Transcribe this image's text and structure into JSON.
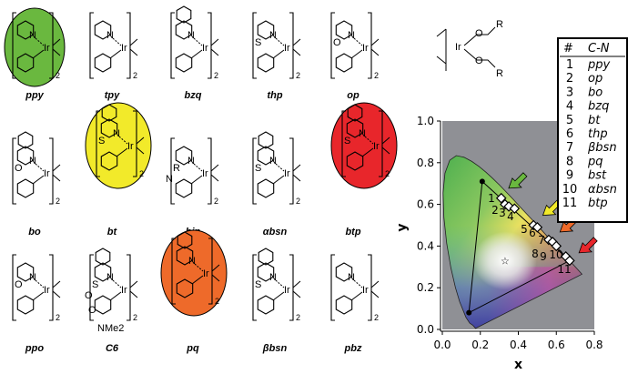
{
  "complexes": [
    {
      "label": "ppy",
      "atoms": [
        "N",
        "Ir",
        "2"
      ],
      "extra": [],
      "highlight": "#6ab83f"
    },
    {
      "label": "tpy",
      "atoms": [
        "N",
        "Ir",
        "2"
      ],
      "extra": [],
      "highlight": null
    },
    {
      "label": "bzq",
      "atoms": [
        "N",
        "Ir",
        "2"
      ],
      "extra": [],
      "highlight": null
    },
    {
      "label": "thp",
      "atoms": [
        "N",
        "Ir",
        "2"
      ],
      "extra": [
        "S"
      ],
      "highlight": null
    },
    {
      "label": "op",
      "atoms": [
        "N",
        "Ir",
        "2"
      ],
      "extra": [
        "O"
      ],
      "highlight": null
    },
    {
      "label": "bo",
      "atoms": [
        "N",
        "Ir",
        "2"
      ],
      "extra": [
        "O"
      ],
      "highlight": null
    },
    {
      "label": "bt",
      "atoms": [
        "N",
        "Ir",
        "2"
      ],
      "extra": [
        "S"
      ],
      "highlight": "#f2ea2a"
    },
    {
      "label": "bin",
      "atoms": [
        "N",
        "Ir",
        "2"
      ],
      "extra": [
        "R",
        "N"
      ],
      "highlight": null
    },
    {
      "label": "αbsn",
      "atoms": [
        "N",
        "Ir",
        "2"
      ],
      "extra": [
        "S"
      ],
      "highlight": null
    },
    {
      "label": "btp",
      "atoms": [
        "N",
        "Ir",
        "2"
      ],
      "extra": [
        "S"
      ],
      "highlight": "#e8262b"
    },
    {
      "label": "ppo",
      "atoms": [
        "N",
        "Ir",
        "2"
      ],
      "extra": [
        "O"
      ],
      "highlight": null
    },
    {
      "label": "C6",
      "atoms": [
        "N",
        "Ir",
        "2"
      ],
      "extra": [
        "S",
        "O",
        "O",
        "NMe2"
      ],
      "highlight": null
    },
    {
      "label": "pq",
      "atoms": [
        "N",
        "Ir",
        "2"
      ],
      "extra": [],
      "highlight": "#ee6a2a"
    },
    {
      "label": "βbsn",
      "atoms": [
        "N",
        "Ir",
        "2"
      ],
      "extra": [
        "S"
      ],
      "highlight": null
    },
    {
      "label": "pbz",
      "atoms": [
        "N",
        "Ir",
        "2"
      ],
      "extra": [],
      "highlight": null
    }
  ],
  "acac": {
    "atoms": [
      "Ir",
      "O",
      "O",
      "R",
      "R"
    ]
  },
  "legend": {
    "header": [
      "#",
      "C-N"
    ],
    "rows": [
      [
        "1",
        "ppy"
      ],
      [
        "2",
        "op"
      ],
      [
        "3",
        "bo"
      ],
      [
        "4",
        "bzq"
      ],
      [
        "5",
        "bt"
      ],
      [
        "6",
        "thp"
      ],
      [
        "7",
        "βbsn"
      ],
      [
        "8",
        "pq"
      ],
      [
        "9",
        "bst"
      ],
      [
        "10",
        "αbsn"
      ],
      [
        "11",
        "btp"
      ]
    ]
  },
  "chart_data": {
    "type": "scatter",
    "title": "",
    "xlabel": "x",
    "ylabel": "y",
    "xlim": [
      0,
      0.8
    ],
    "ylim": [
      0,
      1.0
    ],
    "xticks": [
      "0.0",
      "0.2",
      "0.4",
      "0.6",
      "0.8"
    ],
    "yticks": [
      "0.0",
      "0.2",
      "0.4",
      "0.6",
      "0.8",
      "1.0"
    ],
    "background": "#8f9095",
    "gamut_triangle": [
      [
        0.21,
        0.71
      ],
      [
        0.14,
        0.08
      ],
      [
        0.67,
        0.33
      ]
    ],
    "white_point": [
      0.33,
      0.33
    ],
    "points": [
      {
        "id": "1",
        "x": 0.31,
        "y": 0.63
      },
      {
        "id": "2",
        "x": 0.33,
        "y": 0.6
      },
      {
        "id": "3",
        "x": 0.35,
        "y": 0.59
      },
      {
        "id": "4",
        "x": 0.38,
        "y": 0.58
      },
      {
        "id": "5",
        "x": 0.48,
        "y": 0.5
      },
      {
        "id": "6",
        "x": 0.5,
        "y": 0.49
      },
      {
        "id": "7",
        "x": 0.56,
        "y": 0.43
      },
      {
        "id": "8",
        "x": 0.58,
        "y": 0.42
      },
      {
        "id": "9",
        "x": 0.6,
        "y": 0.4
      },
      {
        "id": "10",
        "x": 0.65,
        "y": 0.35
      },
      {
        "id": "11",
        "x": 0.67,
        "y": 0.33
      }
    ],
    "arrows": [
      {
        "color": "#6ab83f",
        "x": 0.33,
        "y": 0.66
      },
      {
        "color": "#f2ea2a",
        "x": 0.51,
        "y": 0.53
      },
      {
        "color": "#ee6a2a",
        "x": 0.6,
        "y": 0.45
      },
      {
        "color": "#e8262b",
        "x": 0.7,
        "y": 0.35
      }
    ]
  }
}
